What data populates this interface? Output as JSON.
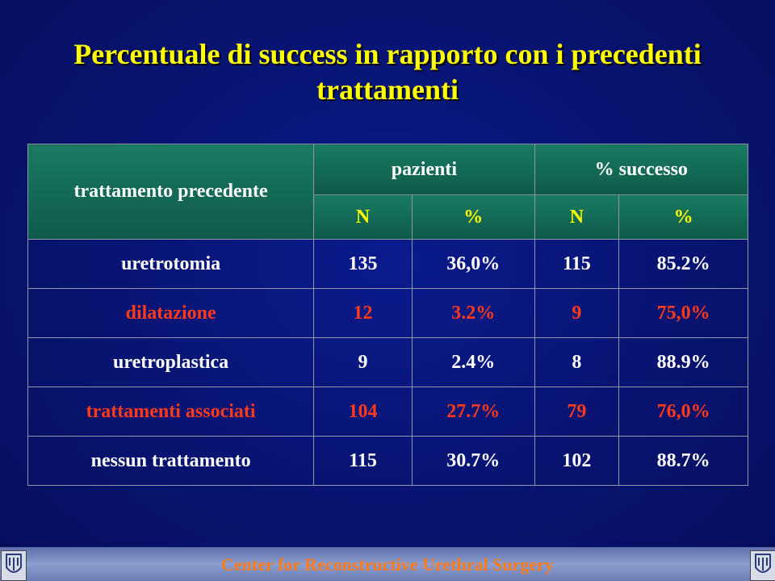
{
  "slide": {
    "title_line1": "Percentuale di success in rapporto con i precedenti",
    "title_line2": "trattamenti",
    "footer": "Center for Reconstructive Urethral Surgery"
  },
  "table": {
    "corner_header": "trattamento precedente",
    "group_headers": [
      "pazienti",
      "% successo"
    ],
    "sub_headers": [
      "N",
      "%",
      "N",
      "%"
    ],
    "rows": [
      {
        "label": "uretrotomia",
        "cells": [
          "135",
          "36,0%",
          "115",
          "85.2%"
        ],
        "color": "#ffffff"
      },
      {
        "label": "dilatazione",
        "cells": [
          "12",
          "3.2%",
          "9",
          "75,0%"
        ],
        "color": "#ff3a1a"
      },
      {
        "label": "uretroplastica",
        "cells": [
          "9",
          "2.4%",
          "8",
          "88.9%"
        ],
        "color": "#ffffff"
      },
      {
        "label": "trattamenti associati",
        "cells": [
          "104",
          "27.7%",
          "79",
          "76,0%"
        ],
        "color": "#ff3a1a"
      },
      {
        "label": "nessun trattamento",
        "cells": [
          "115",
          "30.7%",
          "102",
          "88.7%"
        ],
        "color": "#ffffff"
      }
    ]
  },
  "colors": {
    "background": "#081575",
    "title": "#ffff00",
    "header_fill": "#0d5a48",
    "sub_header_text": "#ffff00",
    "highlight_text": "#ff3a1a",
    "footer_text": "#ff7a18"
  },
  "icons": {
    "left_logo": "logo-icon",
    "right_logo": "logo-icon"
  }
}
